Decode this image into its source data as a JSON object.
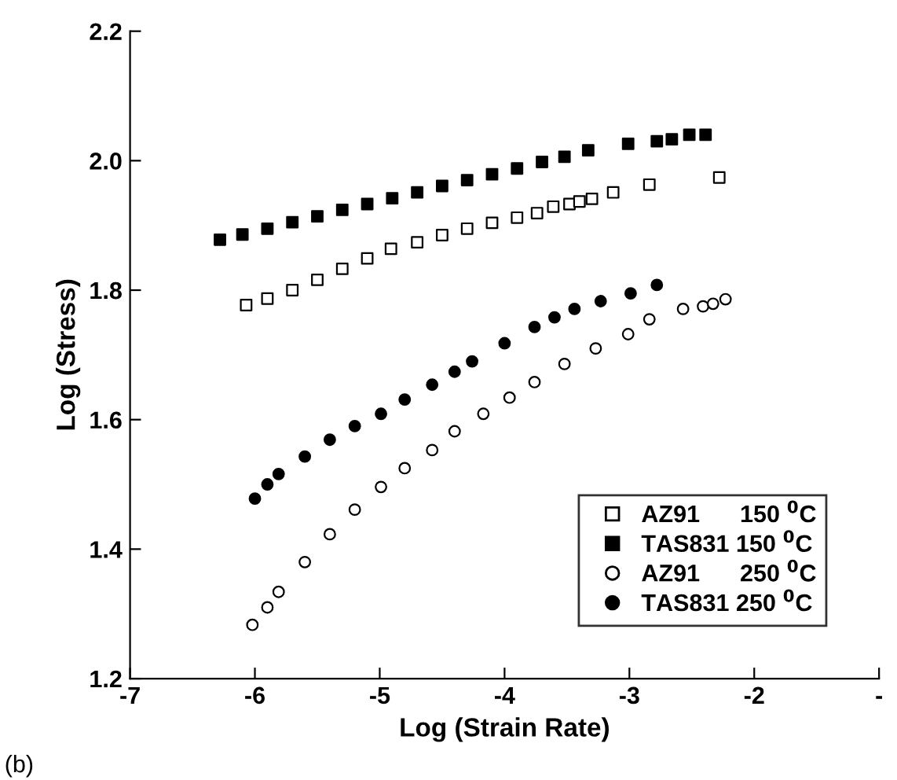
{
  "chart_data": {
    "type": "scatter",
    "xlabel": "Log (Strain Rate)",
    "ylabel": "Log (Stress)",
    "xlim": [
      -7,
      -1
    ],
    "xticks": [
      -7,
      -6,
      -5,
      -4,
      -3,
      -2,
      {
        "value": -1,
        "label": "-"
      }
    ],
    "ylim": [
      1.2,
      2.2
    ],
    "yticks": [
      1.2,
      1.4,
      1.6,
      1.8,
      {
        "value": 2.0,
        "label": "2.0"
      },
      2.2
    ],
    "grid": false,
    "legend": "bottom right",
    "annotations": [
      "(b)"
    ],
    "series": [
      {
        "name": "AZ91      150 $^{0}$C",
        "marker": "square",
        "color": "#ffffff",
        "x": [
          -6.07,
          -5.9,
          -5.7,
          -5.5,
          -5.3,
          -5.1,
          -4.91,
          -4.7,
          -4.5,
          -4.3,
          -4.1,
          -3.9,
          -3.74,
          -3.61,
          -3.48,
          -3.4,
          -3.3,
          -3.13,
          -2.84,
          -2.28
        ],
        "values": [
          1.777,
          1.787,
          1.8,
          1.816,
          1.833,
          1.849,
          1.864,
          1.874,
          1.885,
          1.895,
          1.904,
          1.912,
          1.919,
          1.929,
          1.933,
          1.937,
          1.941,
          1.951,
          1.963,
          1.974
        ]
      },
      {
        "name": "TAS831 150 $^{0}$C",
        "marker": "square",
        "color": "#000000",
        "x": [
          -6.28,
          -6.1,
          -5.9,
          -5.7,
          -5.5,
          -5.3,
          -5.1,
          -4.9,
          -4.7,
          -4.5,
          -4.3,
          -4.1,
          -3.9,
          -3.7,
          -3.52,
          -3.33,
          -3.01,
          -2.78,
          -2.66,
          -2.52,
          -2.39
        ],
        "values": [
          1.878,
          1.886,
          1.895,
          1.905,
          1.914,
          1.924,
          1.933,
          1.942,
          1.951,
          1.961,
          1.97,
          1.979,
          1.988,
          1.998,
          2.006,
          2.016,
          2.026,
          2.03,
          2.033,
          2.04,
          2.04
        ]
      },
      {
        "name": "AZ91      250 $^{0}$C",
        "marker": "circle",
        "color": "#ffffff",
        "x": [
          -6.02,
          -5.9,
          -5.81,
          -5.6,
          -5.4,
          -5.2,
          -4.99,
          -4.8,
          -4.58,
          -4.4,
          -4.17,
          -3.96,
          -3.76,
          -3.52,
          -3.27,
          -3.01,
          -2.84,
          -2.57,
          -2.41,
          -2.33,
          -2.23
        ],
        "values": [
          1.283,
          1.31,
          1.334,
          1.38,
          1.423,
          1.461,
          1.496,
          1.525,
          1.553,
          1.582,
          1.609,
          1.634,
          1.658,
          1.686,
          1.71,
          1.732,
          1.755,
          1.771,
          1.775,
          1.779,
          1.786
        ]
      },
      {
        "name": "TAS831 250 $^{0}$C",
        "marker": "circle",
        "color": "#000000",
        "x": [
          -6.0,
          -5.9,
          -5.81,
          -5.6,
          -5.4,
          -5.2,
          -4.99,
          -4.8,
          -4.58,
          -4.4,
          -4.26,
          -4.0,
          -3.76,
          -3.6,
          -3.44,
          -3.23,
          -2.99,
          -2.78
        ],
        "values": [
          1.478,
          1.5,
          1.516,
          1.543,
          1.569,
          1.59,
          1.609,
          1.631,
          1.654,
          1.674,
          1.69,
          1.718,
          1.743,
          1.758,
          1.771,
          1.783,
          1.795,
          1.808
        ]
      }
    ]
  }
}
